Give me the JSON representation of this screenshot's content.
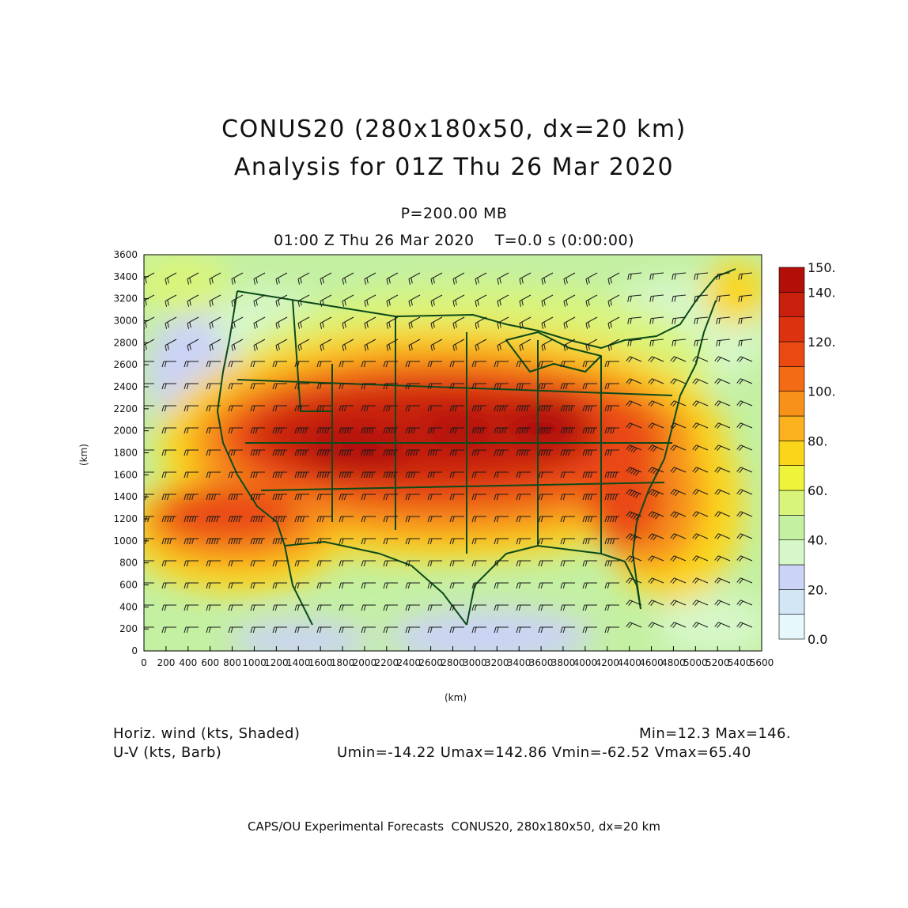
{
  "header": {
    "title_line1": "CONUS20 (280x180x50, dx=20 km)",
    "title_line2": "Analysis for 01Z Thu 26 Mar 2020",
    "level": "P=200.00 MB",
    "valid_time": "01:00 Z Thu 26 Mar 2020    T=0.0 s (0:00:00)"
  },
  "axes": {
    "x_unit": "(km)",
    "y_unit": "(km)",
    "x_ticks": [
      0,
      200,
      400,
      600,
      800,
      1000,
      1200,
      1400,
      1600,
      1800,
      2000,
      2200,
      2400,
      2600,
      2800,
      3000,
      3200,
      3400,
      3600,
      3800,
      4000,
      4200,
      4400,
      4600,
      4800,
      5000,
      5200,
      5400,
      5600
    ],
    "y_ticks": [
      0,
      200,
      400,
      600,
      800,
      1000,
      1200,
      1400,
      1600,
      1800,
      2000,
      2200,
      2400,
      2600,
      2800,
      3000,
      3200,
      3400,
      3600
    ],
    "x_range": [
      0,
      5600
    ],
    "y_range": [
      0,
      3600
    ]
  },
  "colorbar": {
    "labels": [
      "0.0",
      "20.",
      "40.",
      "60.",
      "80.",
      "100.",
      "120.",
      "140.",
      "150."
    ],
    "bins": [
      {
        "from": 0,
        "to": 10,
        "color": "#e6f8fb"
      },
      {
        "from": 10,
        "to": 20,
        "color": "#d2e6f6"
      },
      {
        "from": 20,
        "to": 30,
        "color": "#cbd3f6"
      },
      {
        "from": 30,
        "to": 40,
        "color": "#d6f7c8"
      },
      {
        "from": 40,
        "to": 50,
        "color": "#c4f0a2"
      },
      {
        "from": 50,
        "to": 60,
        "color": "#d9f47a"
      },
      {
        "from": 60,
        "to": 70,
        "color": "#eef43a"
      },
      {
        "from": 70,
        "to": 80,
        "color": "#fad51a"
      },
      {
        "from": 80,
        "to": 90,
        "color": "#fbb21e"
      },
      {
        "from": 90,
        "to": 100,
        "color": "#f7911a"
      },
      {
        "from": 100,
        "to": 110,
        "color": "#f36b14"
      },
      {
        "from": 110,
        "to": 120,
        "color": "#ea4a12"
      },
      {
        "from": 120,
        "to": 130,
        "color": "#dc3210"
      },
      {
        "from": 130,
        "to": 140,
        "color": "#c8200c"
      },
      {
        "from": 140,
        "to": 150,
        "color": "#b20f08"
      }
    ]
  },
  "info": {
    "field1": "Horiz. wind (kts, Shaded)",
    "field2": "U-V (kts, Barb)",
    "minmax": "Min=12.3 Max=146.",
    "uv_stats": "Umin=-14.22 Umax=142.86 Vmin=-62.52 Vmax=65.40"
  },
  "footer": "CAPS/OU Experimental Forecasts  CONUS20, 280x180x50, dx=20 km",
  "colors": {
    "map_lines": "#0b4a1a",
    "barbs": "#1a1a1a"
  }
}
